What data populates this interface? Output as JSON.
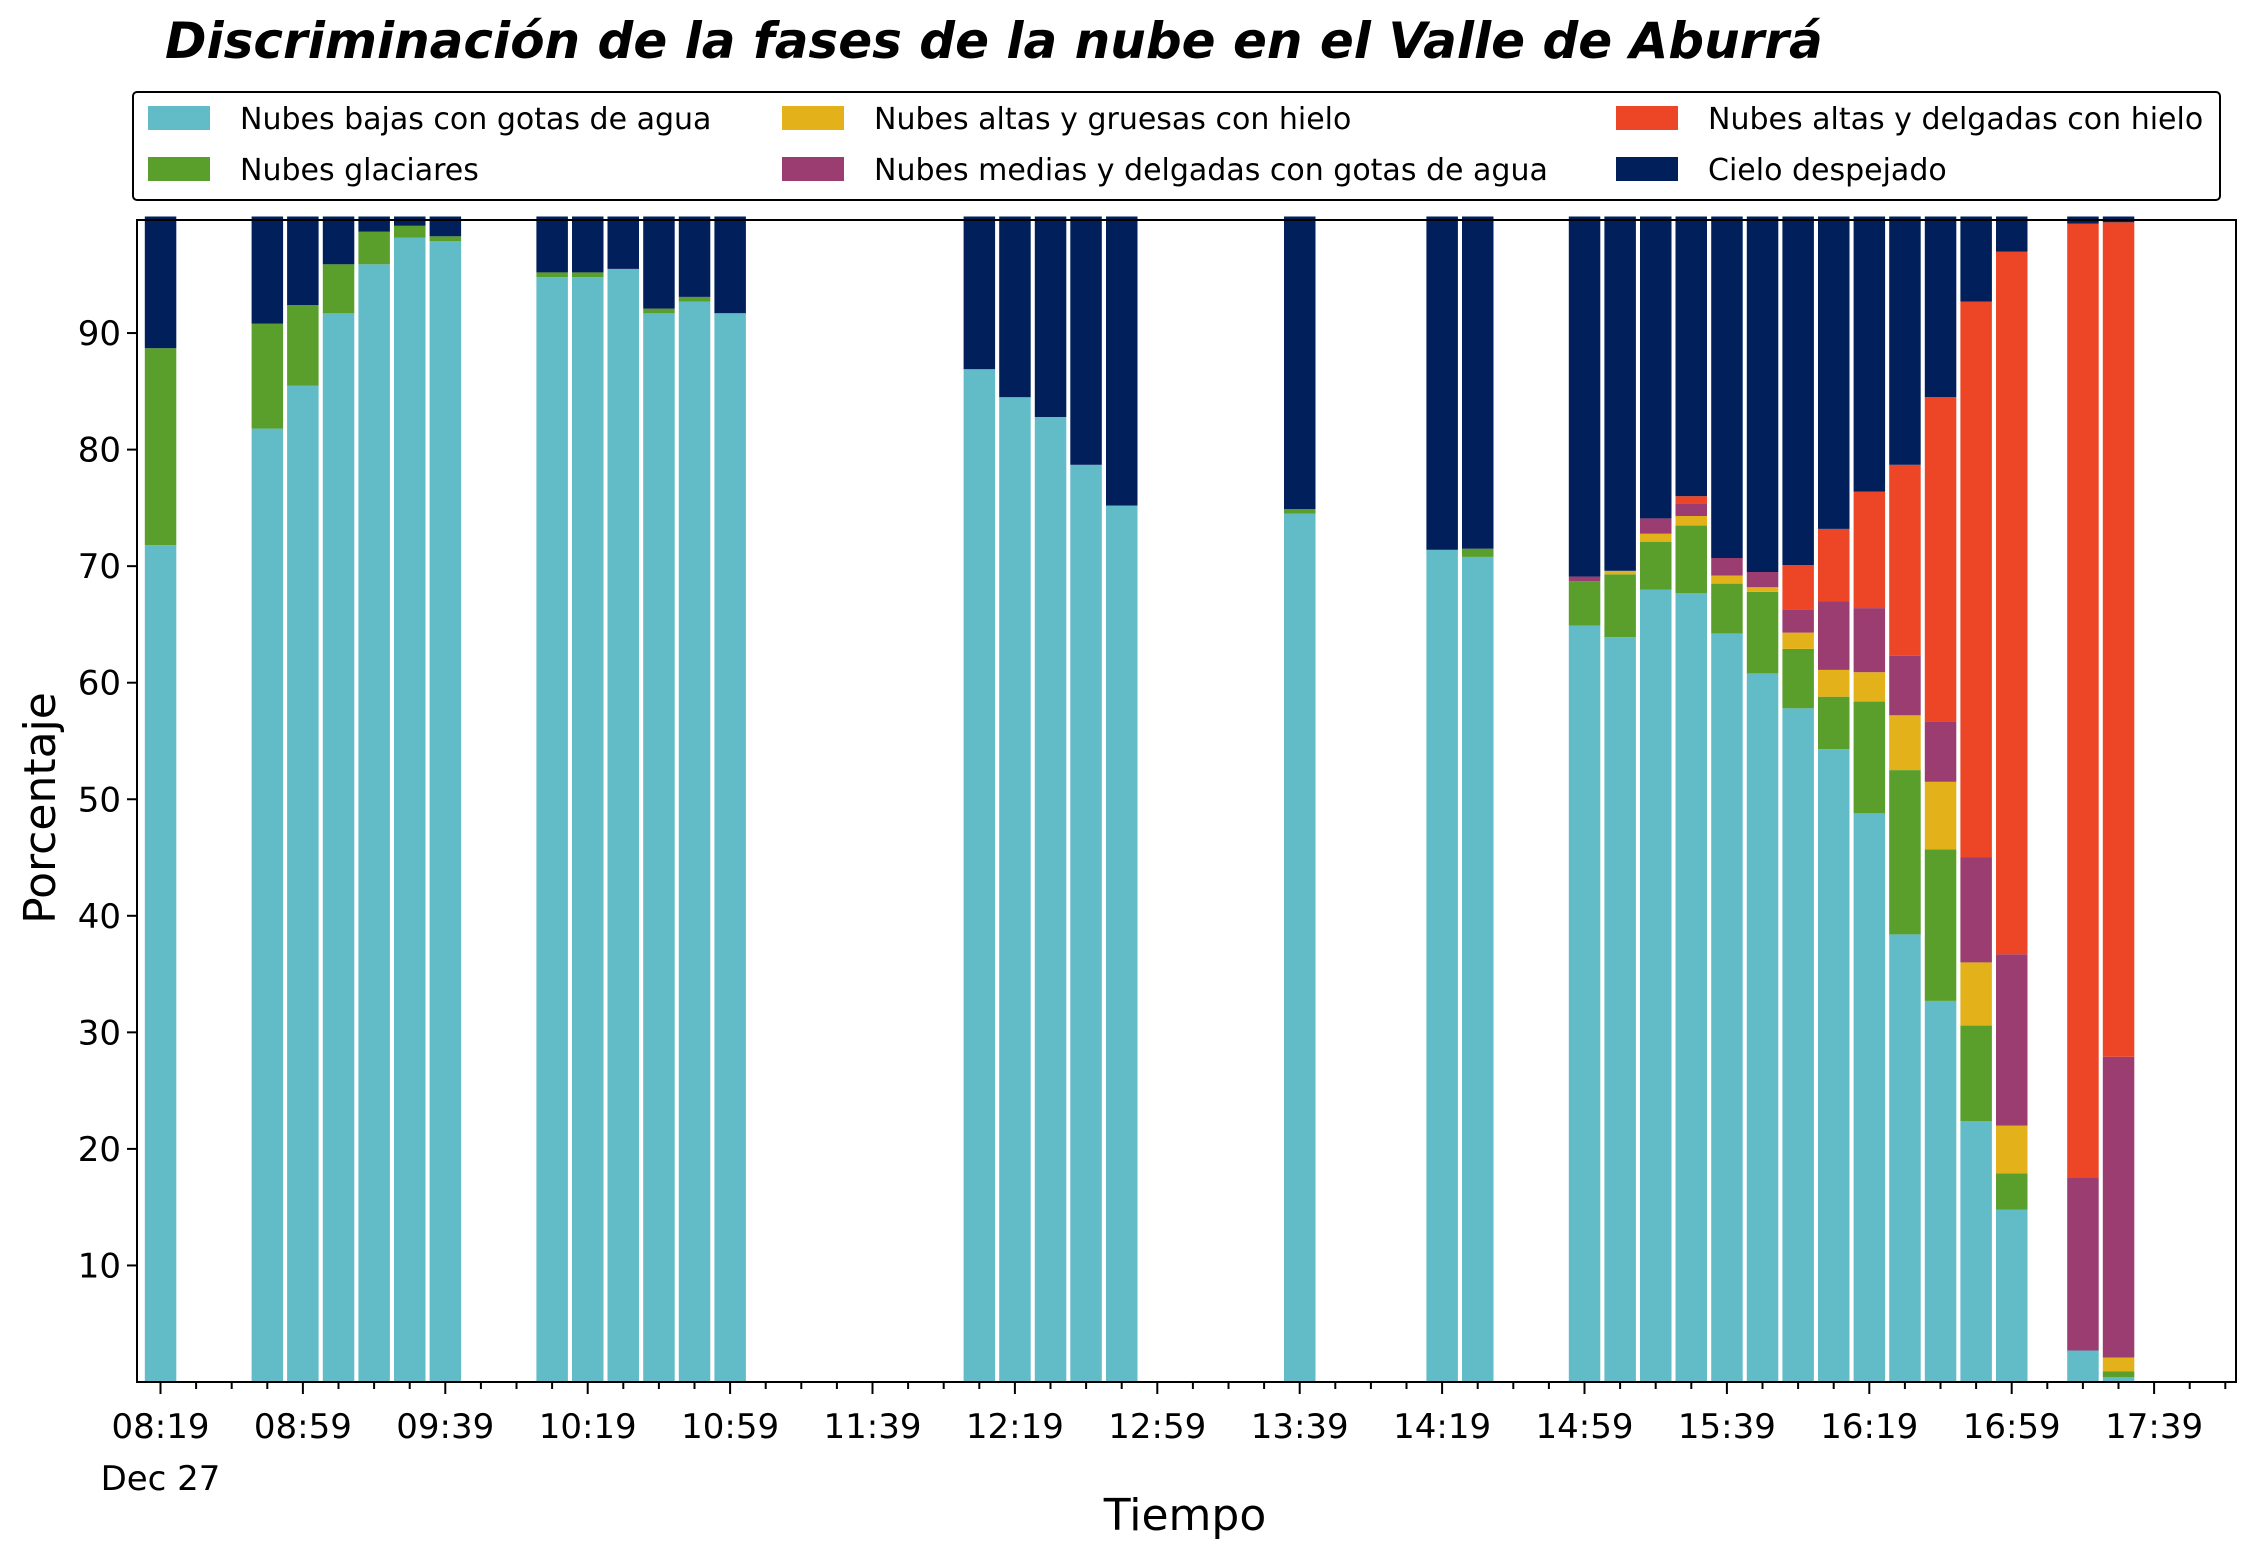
{
  "chart_data": {
    "type": "bar",
    "stacked": true,
    "title": "Discriminación de la fases de la nube en el Valle de Aburrá",
    "xlabel": "Tiempo",
    "ylabel": "Porcentaje",
    "ylim": [
      0,
      100
    ],
    "yticks": [
      10,
      20,
      30,
      40,
      50,
      60,
      70,
      80,
      90
    ],
    "xticks": [
      "08:19",
      "08:59",
      "09:39",
      "10:19",
      "10:59",
      "11:39",
      "12:19",
      "12:59",
      "13:39",
      "14:19",
      "14:59",
      "15:39",
      "16:19",
      "16:59",
      "17:39"
    ],
    "xtick_date": "Dec 27",
    "grid": false,
    "legend_position": "top",
    "x": [
      "08:19",
      "08:29",
      "08:39",
      "08:49",
      "08:59",
      "09:09",
      "09:19",
      "09:29",
      "09:39",
      "09:49",
      "09:59",
      "10:09",
      "10:19",
      "10:29",
      "10:39",
      "10:49",
      "10:59",
      "11:09",
      "11:19",
      "11:29",
      "11:39",
      "11:49",
      "11:59",
      "12:09",
      "12:19",
      "12:29",
      "12:39",
      "12:49",
      "12:59",
      "13:09",
      "13:19",
      "13:29",
      "13:39",
      "13:49",
      "13:59",
      "14:09",
      "14:19",
      "14:29",
      "14:39",
      "14:49",
      "14:59",
      "15:09",
      "15:19",
      "15:29",
      "15:39",
      "15:49",
      "15:59",
      "16:09",
      "16:19",
      "16:29",
      "16:39",
      "16:49",
      "16:59",
      "17:09",
      "17:19",
      "17:29",
      "17:39",
      "17:49"
    ],
    "series": [
      {
        "name": "Nubes bajas con gotas de agua",
        "color": "#62bcc8",
        "values": [
          71.8,
          null,
          null,
          81.8,
          85.5,
          91.7,
          95.9,
          98.2,
          97.9,
          null,
          null,
          94.8,
          94.8,
          95.5,
          91.7,
          92.7,
          91.7,
          null,
          null,
          null,
          null,
          null,
          null,
          86.9,
          84.5,
          82.8,
          78.7,
          75.2,
          null,
          null,
          null,
          null,
          74.5,
          null,
          null,
          null,
          71.4,
          70.8,
          null,
          null,
          64.9,
          63.9,
          68.0,
          67.7,
          64.2,
          60.8,
          57.8,
          54.3,
          48.8,
          38.4,
          32.7,
          22.4,
          14.8,
          null,
          2.7,
          0.4,
          null,
          null
        ]
      },
      {
        "name": "Nubes glaciares",
        "color": "#5a9e2b",
        "values": [
          16.9,
          null,
          null,
          9.0,
          6.9,
          4.2,
          2.8,
          1.0,
          0.4,
          null,
          null,
          0.4,
          0.4,
          0.0,
          0.4,
          0.4,
          0.0,
          null,
          null,
          null,
          null,
          null,
          null,
          0.0,
          0.0,
          0.0,
          0.0,
          0.0,
          null,
          null,
          null,
          null,
          0.4,
          null,
          null,
          null,
          0.0,
          0.7,
          null,
          null,
          3.8,
          5.4,
          4.1,
          5.8,
          4.3,
          7.0,
          5.1,
          4.5,
          9.6,
          14.1,
          13.0,
          8.2,
          3.1,
          null,
          0.0,
          0.5,
          null,
          null
        ]
      },
      {
        "name": "Nubes altas y gruesas con hielo",
        "color": "#e3b21a",
        "values": [
          0,
          null,
          null,
          0,
          0,
          0,
          0,
          0,
          0,
          null,
          null,
          0,
          0,
          0,
          0,
          0,
          0,
          null,
          null,
          null,
          null,
          null,
          null,
          0,
          0,
          0,
          0,
          0,
          null,
          null,
          null,
          null,
          0,
          null,
          null,
          null,
          0,
          0,
          null,
          null,
          0.0,
          0.3,
          0.7,
          0.8,
          0.7,
          0.4,
          1.4,
          2.3,
          2.5,
          4.7,
          5.8,
          5.4,
          4.1,
          null,
          0.0,
          1.2,
          null,
          null
        ]
      },
      {
        "name": "Nubes medias y delgadas con gotas de agua",
        "color": "#9c3d72",
        "values": [
          0,
          null,
          null,
          0,
          0,
          0,
          0,
          0,
          0,
          null,
          null,
          0,
          0,
          0,
          0,
          0,
          0,
          null,
          null,
          null,
          null,
          null,
          null,
          0,
          0,
          0,
          0,
          0,
          null,
          null,
          null,
          null,
          0,
          null,
          null,
          null,
          0,
          0,
          null,
          null,
          0.4,
          0.0,
          1.3,
          1.1,
          1.5,
          1.3,
          2.0,
          5.9,
          5.5,
          5.1,
          5.2,
          9.0,
          14.7,
          null,
          14.8,
          25.8,
          null,
          null
        ]
      },
      {
        "name": "Nubes altas y delgadas con hielo",
        "color": "#ec4627",
        "values": [
          0,
          null,
          null,
          0,
          0,
          0,
          0,
          0,
          0,
          null,
          null,
          0,
          0,
          0,
          0,
          0,
          0,
          null,
          null,
          null,
          null,
          null,
          null,
          0,
          0,
          0,
          0,
          0,
          null,
          null,
          null,
          null,
          0,
          null,
          null,
          null,
          0,
          0,
          null,
          null,
          0.0,
          0.0,
          0.0,
          0.6,
          0.0,
          0.0,
          3.8,
          6.2,
          10.0,
          16.4,
          27.8,
          47.7,
          60.3,
          null,
          81.9,
          71.6,
          null,
          null
        ]
      },
      {
        "name": "Cielo despejado",
        "color": "#011f5b",
        "values": [
          11.3,
          null,
          null,
          9.2,
          7.6,
          4.1,
          1.3,
          0.8,
          1.7,
          null,
          null,
          4.8,
          4.8,
          4.5,
          7.9,
          6.9,
          8.3,
          null,
          null,
          null,
          null,
          null,
          null,
          13.1,
          15.5,
          17.2,
          21.3,
          24.8,
          null,
          null,
          null,
          null,
          25.1,
          null,
          null,
          null,
          28.6,
          28.5,
          null,
          null,
          30.9,
          30.4,
          25.9,
          24.0,
          29.3,
          30.5,
          29.9,
          26.8,
          23.6,
          21.3,
          15.5,
          7.3,
          3.0,
          null,
          0.6,
          0.5,
          null,
          null
        ]
      }
    ]
  }
}
